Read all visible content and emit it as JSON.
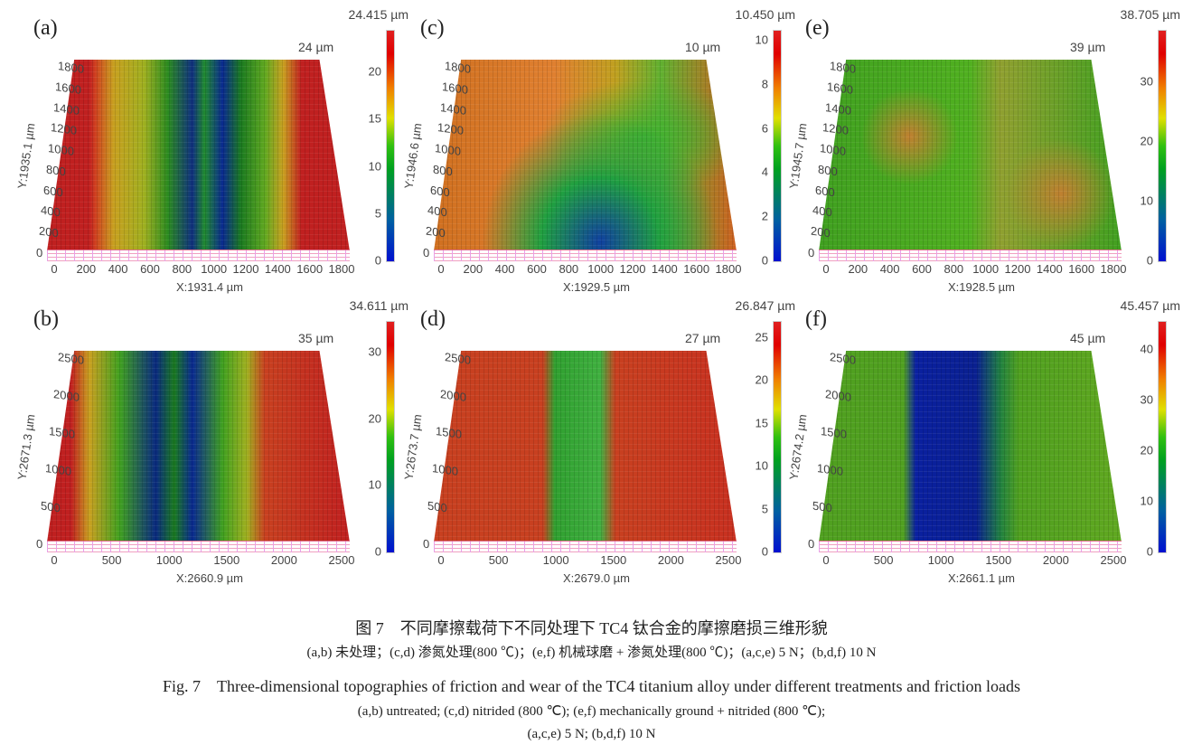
{
  "panels": [
    {
      "id": "a",
      "label": "(a)",
      "max": "24.415 µm",
      "corner": "24 µm",
      "xlabel": "X:1931.4 µm",
      "ylabel": "Y:1935.1 µm",
      "xticks": [
        "0",
        "200",
        "400",
        "600",
        "800",
        "1000",
        "1200",
        "1400",
        "1600",
        "1800"
      ],
      "yticks": [
        "0",
        "200",
        "400",
        "600",
        "800",
        "1000",
        "1200",
        "1400",
        "1600",
        "1800"
      ],
      "cticks": [
        "0",
        "5",
        "10",
        "15",
        "20"
      ],
      "cmax": 24.415,
      "surface": "untreated-5N"
    },
    {
      "id": "c",
      "label": "(c)",
      "max": "10.450 µm",
      "corner": "10 µm",
      "xlabel": "X:1929.5 µm",
      "ylabel": "Y:1946.6 µm",
      "xticks": [
        "0",
        "200",
        "400",
        "600",
        "800",
        "1000",
        "1200",
        "1400",
        "1600",
        "1800"
      ],
      "yticks": [
        "0",
        "200",
        "400",
        "600",
        "800",
        "1000",
        "1200",
        "1400",
        "1600",
        "1800"
      ],
      "cticks": [
        "0",
        "2",
        "4",
        "6",
        "8",
        "10"
      ],
      "cmax": 10.45,
      "surface": "nitrided-5N"
    },
    {
      "id": "e",
      "label": "(e)",
      "max": "38.705 µm",
      "corner": "39 µm",
      "xlabel": "X:1928.5 µm",
      "ylabel": "Y:1945.7 µm",
      "xticks": [
        "0",
        "200",
        "400",
        "600",
        "800",
        "1000",
        "1200",
        "1400",
        "1600",
        "1800"
      ],
      "yticks": [
        "0",
        "200",
        "400",
        "600",
        "800",
        "1000",
        "1200",
        "1400",
        "1600",
        "1800"
      ],
      "cticks": [
        "0",
        "10",
        "20",
        "30"
      ],
      "cmax": 38.705,
      "surface": "ground-nitrided-5N"
    },
    {
      "id": "b",
      "label": "(b)",
      "max": "34.611 µm",
      "corner": "35 µm",
      "xlabel": "X:2660.9 µm",
      "ylabel": "Y:2671.3 µm",
      "xticks": [
        "0",
        "500",
        "1000",
        "1500",
        "2000",
        "2500"
      ],
      "yticks": [
        "0",
        "500",
        "1000",
        "1500",
        "2000",
        "2500"
      ],
      "cticks": [
        "0",
        "10",
        "20",
        "30"
      ],
      "cmax": 34.611,
      "surface": "untreated-10N"
    },
    {
      "id": "d",
      "label": "(d)",
      "max": "26.847 µm",
      "corner": "27 µm",
      "xlabel": "X:2679.0 µm",
      "ylabel": "Y:2673.7 µm",
      "xticks": [
        "0",
        "500",
        "1000",
        "1500",
        "2000",
        "2500"
      ],
      "yticks": [
        "0",
        "500",
        "1000",
        "1500",
        "2000",
        "2500"
      ],
      "cticks": [
        "0",
        "5",
        "10",
        "15",
        "20",
        "25"
      ],
      "cmax": 26.847,
      "surface": "nitrided-10N"
    },
    {
      "id": "f",
      "label": "(f)",
      "max": "45.457 µm",
      "corner": "45 µm",
      "xlabel": "X:2661.1 µm",
      "ylabel": "Y:2674.2 µm",
      "xticks": [
        "0",
        "500",
        "1000",
        "1500",
        "2000",
        "2500"
      ],
      "yticks": [
        "0",
        "500",
        "1000",
        "1500",
        "2000",
        "2500"
      ],
      "cticks": [
        "0",
        "10",
        "20",
        "30",
        "40"
      ],
      "cmax": 45.457,
      "surface": "ground-nitrided-10N"
    }
  ],
  "caption": {
    "cn_title": "图 7　不同摩擦载荷下不同处理下 TC4 钛合金的摩擦磨损三维形貌",
    "cn_sub": "(a,b) 未处理；(c,d) 渗氮处理(800 ℃)；(e,f) 机械球磨 + 渗氮处理(800 ℃)；(a,c,e) 5 N；(b,d,f) 10 N",
    "en_title": "Fig. 7　Three-dimensional topographies of friction and wear of the TC4 titanium alloy under different treatments and friction loads",
    "en_sub1": "(a,b)  untreated;  (c,d)  nitrided  (800 ℃);  (e,f)  mechanically ground +  nitrided  (800 ℃);",
    "en_sub2": "(a,c,e)  5 N;  (b,d,f)  10 N"
  }
}
